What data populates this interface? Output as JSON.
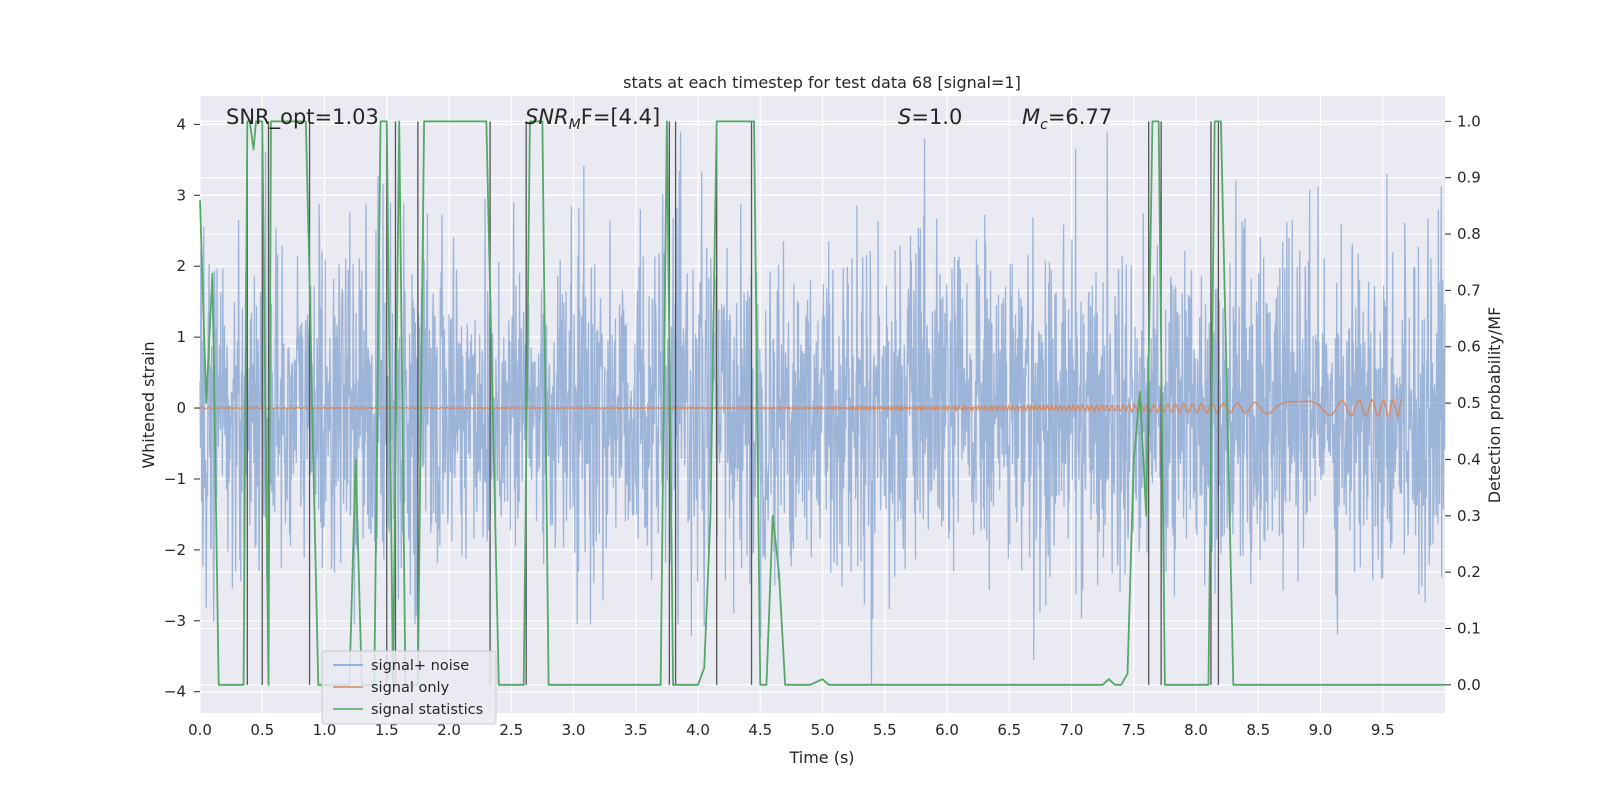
{
  "chart_data": {
    "type": "line",
    "title": "stats at each timestep for test data 68 [signal=1]",
    "xlabel": "Time (s)",
    "ylabel": "Whitened strain",
    "ylabel_right": "Detection probability/MF",
    "xlim": [
      0.0,
      10.0
    ],
    "ylim": [
      -4.3,
      4.4
    ],
    "ylim_right": [
      -0.05,
      1.045
    ],
    "x_ticks": [
      "0.0",
      "0.5",
      "1.0",
      "1.5",
      "2.0",
      "2.5",
      "3.0",
      "3.5",
      "4.0",
      "4.5",
      "5.0",
      "5.5",
      "6.0",
      "6.5",
      "7.0",
      "7.5",
      "8.0",
      "8.5",
      "9.0",
      "9.5"
    ],
    "y_ticks": [
      "4",
      "3",
      "2",
      "1",
      "0",
      "−1",
      "−2",
      "−3",
      "−4"
    ],
    "y_ticks_right": [
      "1.0",
      "0.9",
      "0.8",
      "0.7",
      "0.6",
      "0.5",
      "0.4",
      "0.3",
      "0.2",
      "0.1",
      "0.0"
    ],
    "grid": true,
    "legend_position": "lower-left",
    "annotations": {
      "snr_opt": "SNR_opt=1.03",
      "snr_mf_italic": "SNR",
      "snr_mf_sub": "M",
      "snr_mf_rest": "F=[4.4]",
      "s_italic": "S",
      "s_rest": "=1.0",
      "mc_italic": "M",
      "mc_sub": "c",
      "mc_rest": "=6.77"
    },
    "series": [
      {
        "name": "signal+ noise",
        "axis": "left",
        "color": "#7f9fcf",
        "noise_envelope": {
          "std": 1.0,
          "max_abs": 3.9,
          "x_range": [
            0.0,
            10.0
          ]
        }
      },
      {
        "name": "signal only",
        "axis": "left",
        "color": "#dd8452",
        "chirp": {
          "start": 0.0,
          "end": 9.65,
          "max_amplitude": 0.12
        }
      },
      {
        "name": "signal statistics",
        "axis": "right",
        "color": "#55a868",
        "x": [
          0.0,
          0.05,
          0.1,
          0.15,
          0.2,
          0.25,
          0.3,
          0.35,
          0.38,
          0.4,
          0.43,
          0.45,
          0.5,
          0.55,
          0.57,
          0.6,
          0.63,
          0.65,
          0.7,
          0.75,
          0.8,
          0.85,
          0.88,
          0.9,
          0.95,
          1.0,
          1.05,
          1.1,
          1.15,
          1.2,
          1.25,
          1.3,
          1.35,
          1.4,
          1.45,
          1.5,
          1.55,
          1.6,
          1.65,
          1.7,
          1.75,
          1.8,
          1.85,
          1.9,
          2.0,
          2.1,
          2.2,
          2.3,
          2.35,
          2.4,
          2.45,
          2.5,
          2.55,
          2.6,
          2.65,
          2.7,
          2.75,
          2.8,
          2.85,
          2.9,
          3.0,
          3.2,
          3.4,
          3.6,
          3.7,
          3.75,
          3.8,
          3.85,
          3.9,
          3.95,
          4.0,
          4.05,
          4.1,
          4.15,
          4.2,
          4.3,
          4.4,
          4.45,
          4.5,
          4.55,
          4.6,
          4.65,
          4.7,
          4.75,
          4.8,
          4.9,
          5.0,
          5.05,
          5.1,
          5.5,
          6.0,
          6.5,
          7.0,
          7.25,
          7.3,
          7.35,
          7.4,
          7.45,
          7.5,
          7.55,
          7.6,
          7.65,
          7.7,
          7.75,
          7.8,
          7.85,
          7.9,
          8.0,
          8.05,
          8.1,
          8.15,
          8.2,
          8.25,
          8.3,
          8.35,
          8.4,
          9.0,
          9.5,
          10.0
        ],
        "values": [
          0.86,
          0.5,
          0.73,
          0.0,
          0.0,
          0.0,
          0.0,
          0.0,
          1.0,
          1.0,
          0.95,
          1.0,
          1.0,
          0.0,
          1.0,
          1.0,
          1.0,
          1.0,
          1.0,
          1.0,
          1.0,
          1.0,
          0.72,
          0.5,
          0.0,
          0.0,
          0.0,
          0.0,
          0.0,
          0.0,
          0.4,
          0.0,
          0.0,
          0.0,
          1.0,
          1.0,
          0.0,
          1.0,
          0.0,
          0.0,
          0.0,
          1.0,
          1.0,
          1.0,
          1.0,
          1.0,
          1.0,
          1.0,
          0.5,
          0.0,
          0.0,
          0.0,
          0.0,
          0.0,
          1.0,
          1.0,
          1.0,
          0.0,
          0.0,
          0.0,
          0.0,
          0.0,
          0.0,
          0.0,
          0.0,
          1.0,
          0.0,
          0.0,
          0.0,
          0.0,
          0.0,
          0.03,
          0.3,
          1.0,
          1.0,
          1.0,
          1.0,
          1.0,
          0.0,
          0.0,
          0.3,
          0.2,
          0.0,
          0.0,
          0.0,
          0.0,
          0.01,
          0.0,
          0.0,
          0.0,
          0.0,
          0.0,
          0.0,
          0.0,
          0.01,
          0.0,
          0.0,
          0.02,
          0.4,
          0.52,
          0.3,
          1.0,
          1.0,
          0.0,
          0.0,
          0.0,
          0.0,
          0.0,
          0.0,
          0.0,
          1.0,
          1.0,
          0.5,
          0.0,
          0.0,
          0.0,
          0.0,
          0.0,
          0.0
        ]
      }
    ],
    "vertical_lines_x": [
      0.38,
      0.5,
      0.55,
      0.88,
      1.5,
      1.57,
      1.75,
      2.33,
      2.62,
      3.77,
      3.82,
      4.15,
      4.43,
      7.62,
      7.72,
      8.12,
      8.18
    ]
  }
}
